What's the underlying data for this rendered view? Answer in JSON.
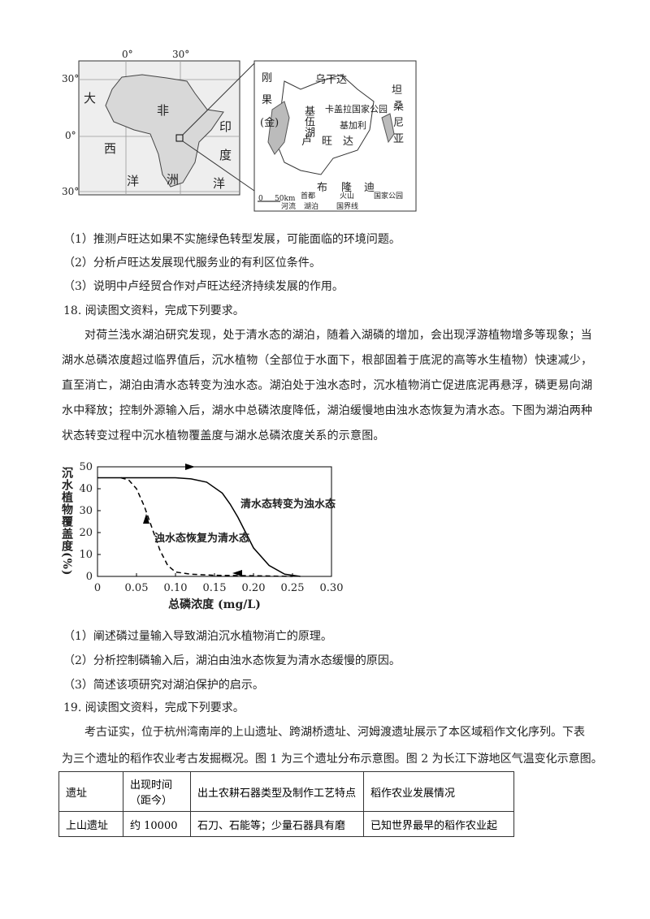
{
  "map": {
    "lon_labels": [
      "0°",
      "30°"
    ],
    "lat_labels": [
      "30°",
      "0°",
      "30°"
    ],
    "ocean_labels": [
      "大",
      "西",
      "洋",
      "印",
      "度",
      "洋"
    ],
    "continent_labels": [
      "非",
      "洲"
    ],
    "inset_labels": [
      "乌干达",
      "刚",
      "果",
      "(金)",
      "卢",
      "旺",
      "达",
      "坦",
      "桑",
      "尼",
      "亚",
      "布",
      "隆",
      "迪",
      "卡盖拉国家公园",
      "基加利",
      "基伍湖"
    ],
    "legend": [
      "0",
      "50km",
      "首都",
      "火山",
      "国家公园",
      "河流",
      "湖泊",
      "国界线"
    ]
  },
  "q17_items": [
    "（1）推测卢旺达如果不实施绿色转型发展，可能面临的环境问题。",
    "（2）分析卢旺达发展现代服务业的有利区位条件。",
    "（3）说明中卢经贸合作对卢旺达经济持续发展的作用。"
  ],
  "q18": {
    "heading": "18. 阅读图文资料，完成下列要求。",
    "paragraph": [
      "对荷兰浅水湖泊研究发现，处于清水态的湖泊，随着入湖磷的增加，会出现浮游植物增多等现象；当",
      "湖水总磷浓度超过临界值后，沉水植物（全部位于水面下，根部固着于底泥的高等水生植物）快速减少，",
      "直至消亡，湖泊由清水态转变为浊水态。湖泊处于浊水态时，沉水植物消亡促进底泥再悬浮，磷更易向湖",
      "水中释放；控制外源输入后，湖水中总磷浓度降低，湖泊缓慢地由浊水态恢复为清水态。下图为湖泊两种",
      "状态转变过程中沉水植物覆盖度与湖水总磷浓度关系的示意图。"
    ],
    "items": [
      "（1）阐述磷过量输入导致湖泊沉水植物消亡的原理。",
      "（2）分析控制磷输入后，湖泊由浊水态恢复为清水态缓慢的原因。",
      "（3）简述该项研究对湖泊保护的启示。"
    ]
  },
  "chart_data": {
    "type": "line",
    "ylabel": "沉水植物覆盖度(%)",
    "xlabel": "总磷浓度 (mg/L)",
    "xlim": [
      0,
      0.3
    ],
    "ylim": [
      0,
      50
    ],
    "xticks": [
      0,
      0.05,
      {
        "value": 0.1,
        "label": "0.10"
      },
      0.15,
      {
        "value": 0.2,
        "label": "0.20"
      },
      0.25,
      {
        "value": 0.3,
        "label": "0.30"
      }
    ],
    "yticks": [
      0,
      10,
      20,
      30,
      40,
      50
    ],
    "series": [
      {
        "name": "清水态转变为浊水态",
        "color": "#000000",
        "dash": false,
        "x": [
          0,
          0.05,
          0.1,
          0.12,
          0.14,
          0.16,
          0.17,
          0.18,
          0.19,
          0.2,
          0.22,
          0.24,
          0.26
        ],
        "values": [
          45,
          45,
          45,
          44.5,
          43,
          38,
          33,
          27,
          20,
          13,
          5,
          1,
          0
        ]
      },
      {
        "name": "浊水态恢复为清水态",
        "color": "#000000",
        "dash": true,
        "x": [
          0.03,
          0.04,
          0.05,
          0.06,
          0.07,
          0.08,
          0.09,
          0.1,
          0.12,
          0.15,
          0.2,
          0.25
        ],
        "values": [
          45,
          44,
          40,
          32,
          22,
          12,
          5,
          2,
          1,
          0.5,
          0.3,
          0
        ]
      }
    ]
  },
  "q19": {
    "heading": "19. 阅读图文资料，完成下列要求。",
    "paragraph": [
      "考古证实，位于杭州湾南岸的上山遗址、跨湖桥遗址、河姆渡遗址展示了本区域稻作文化序列。下表",
      "为三个遗址的稻作农业考古发掘概况。图 1 为三个遗址分布示意图。图 2 为长江下游地区气温变化示意图。"
    ],
    "table": {
      "header": [
        "遗址",
        "出现时间（距今）",
        "出土农耕石器类型及制作工艺特点",
        "稻作农业发展情况"
      ],
      "rows": [
        [
          "上山遗址",
          "约 10000",
          "石刀、石能等；少量石器具有磨",
          "已知世界最早的稻作农业起"
        ]
      ]
    }
  }
}
